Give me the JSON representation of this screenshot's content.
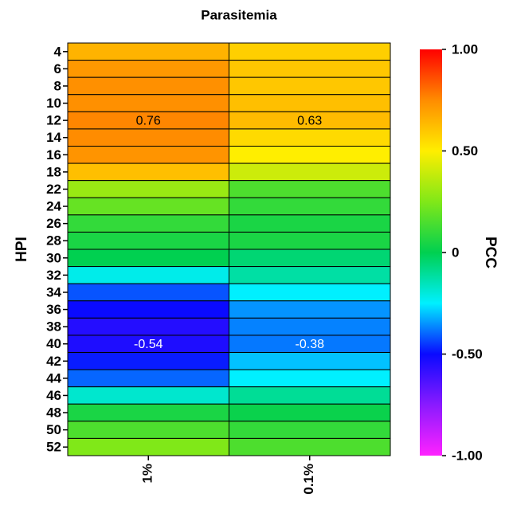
{
  "chart_data": {
    "type": "heatmap",
    "title": "Parasitemia",
    "ylabel": "HPI",
    "colorbar_label": "PCC",
    "x_categories": [
      "1%",
      "0.1%"
    ],
    "y_categories": [
      "4",
      "6",
      "8",
      "10",
      "12",
      "14",
      "16",
      "18",
      "22",
      "24",
      "26",
      "28",
      "30",
      "32",
      "34",
      "36",
      "38",
      "40",
      "42",
      "44",
      "46",
      "48",
      "50",
      "52"
    ],
    "values": [
      [
        0.65,
        0.58
      ],
      [
        0.72,
        0.6
      ],
      [
        0.74,
        0.6
      ],
      [
        0.74,
        0.62
      ],
      [
        0.76,
        0.63
      ],
      [
        0.75,
        0.55
      ],
      [
        0.73,
        0.5
      ],
      [
        0.62,
        0.4
      ],
      [
        0.3,
        0.15
      ],
      [
        0.2,
        0.1
      ],
      [
        0.1,
        0.05
      ],
      [
        0.05,
        0.05
      ],
      [
        0.0,
        -0.05
      ],
      [
        -0.22,
        -0.12
      ],
      [
        -0.42,
        -0.25
      ],
      [
        -0.5,
        -0.35
      ],
      [
        -0.55,
        -0.37
      ],
      [
        -0.54,
        -0.38
      ],
      [
        -0.48,
        -0.3
      ],
      [
        -0.4,
        -0.25
      ],
      [
        -0.18,
        -0.1
      ],
      [
        0.05,
        0.02
      ],
      [
        0.15,
        0.1
      ],
      [
        0.25,
        0.15
      ]
    ],
    "value_labels": [
      [
        null,
        null
      ],
      [
        null,
        null
      ],
      [
        null,
        null
      ],
      [
        null,
        null
      ],
      [
        "0.76",
        "0.63"
      ],
      [
        null,
        null
      ],
      [
        null,
        null
      ],
      [
        null,
        null
      ],
      [
        null,
        null
      ],
      [
        null,
        null
      ],
      [
        null,
        null
      ],
      [
        null,
        null
      ],
      [
        null,
        null
      ],
      [
        null,
        null
      ],
      [
        null,
        null
      ],
      [
        null,
        null
      ],
      [
        null,
        null
      ],
      [
        "-0.54",
        "-0.38"
      ],
      [
        null,
        null
      ],
      [
        null,
        null
      ],
      [
        null,
        null
      ],
      [
        null,
        null
      ],
      [
        null,
        null
      ],
      [
        null,
        null
      ]
    ],
    "zlim": [
      -1,
      1
    ],
    "zticks": [
      {
        "value": 1,
        "label": "1.00"
      },
      {
        "value": 0.5,
        "label": "0.50"
      },
      0,
      {
        "value": -0.5,
        "label": "-0.50"
      },
      {
        "value": -1,
        "label": "-1.00"
      }
    ],
    "colormap": [
      "#ff22ff",
      "#8a1aff",
      "#0a0aff",
      "#00f0ff",
      "#00d050",
      "#80e818",
      "#ffee00",
      "#ff8c00",
      "#ff0000"
    ]
  }
}
